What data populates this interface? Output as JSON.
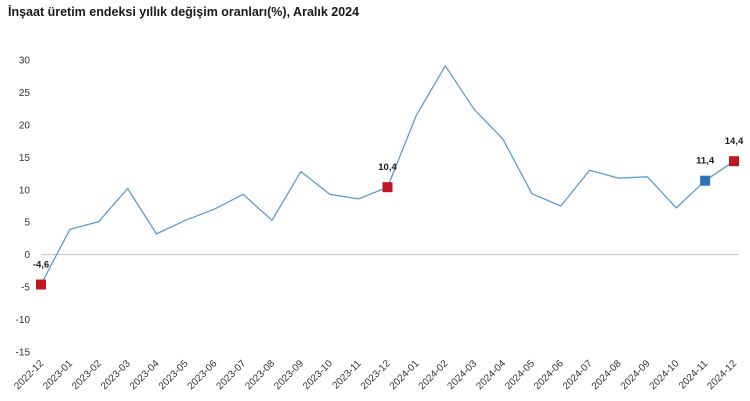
{
  "title": "İnşaat üretim endeksi yıllık değişim oranları(%), Aralık 2024",
  "chart_data": {
    "type": "line",
    "title": "İnşaat üretim endeksi yıllık değişim oranları(%), Aralık 2024",
    "xlabel": "",
    "ylabel": "",
    "ylim": [
      -15,
      30
    ],
    "yticks": [
      "-15",
      "-10",
      "-5",
      "0",
      "5",
      "10",
      "15",
      "20",
      "25",
      "30"
    ],
    "grid": false,
    "categories": [
      "2022-12",
      "2023-01",
      "2023-02",
      "2023-03",
      "2023-04",
      "2023-05",
      "2023-06",
      "2023-07",
      "2023-08",
      "2023-09",
      "2023-10",
      "2023-11",
      "2023-12",
      "2024-01",
      "2024-02",
      "2024-03",
      "2024-04",
      "2024-05",
      "2024-06",
      "2024-07",
      "2024-08",
      "2024-09",
      "2024-10",
      "2024-11",
      "2024-12"
    ],
    "series": [
      {
        "values": [
          -4.6,
          3.9,
          5.1,
          10.2,
          3.2,
          5.3,
          7.0,
          9.3,
          5.3,
          12.8,
          9.3,
          8.6,
          10.4,
          21.5,
          29.1,
          22.4,
          17.8,
          9.4,
          7.5,
          13.0,
          11.8,
          12.0,
          7.2,
          11.4,
          14.4
        ],
        "color": "#5b9bd5"
      }
    ],
    "markers": [
      {
        "index": 0,
        "label": "-4,6",
        "color": "#c0161f"
      },
      {
        "index": 12,
        "label": "10,4",
        "color": "#c0161f"
      },
      {
        "index": 23,
        "label": "11,4",
        "color": "#2e75b6"
      },
      {
        "index": 24,
        "label": "14,4",
        "color": "#c0161f"
      }
    ],
    "zero_line_color": "#bfbfbf"
  }
}
